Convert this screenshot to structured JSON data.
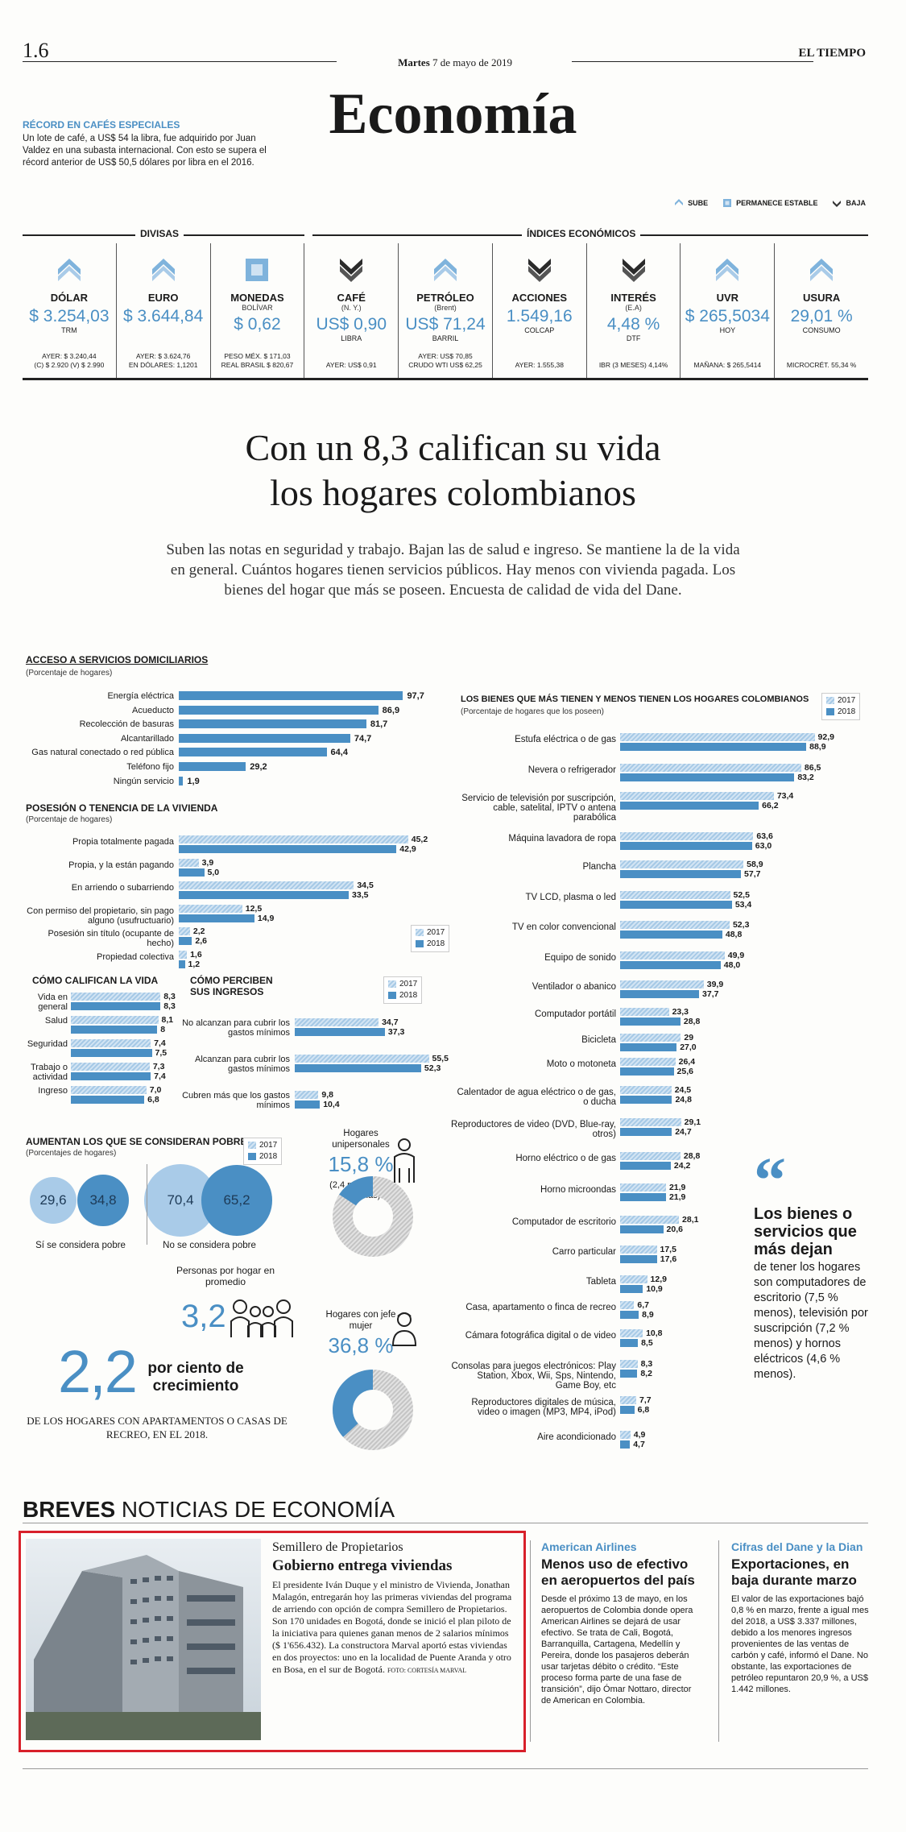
{
  "header": {
    "page_number": "1.6",
    "date_day": "Martes",
    "date_rest": "7 de mayo de 2019",
    "newspaper": "EL TIEMPO",
    "section": "Economía"
  },
  "record": {
    "title": "RÉCORD EN CAFÉS ESPECIALES",
    "text": "Un lote de café, a US$ 54 la libra, fue adquirido por Juan Valdez en una subasta internacional. Con esto se supera el récord anterior de US$ 50,5 dólares por libra en el 2016."
  },
  "legend": {
    "up": "SUBE",
    "stable": "PERMANECE ESTABLE",
    "down": "BAJA"
  },
  "indices": {
    "head_divisas": "DIVISAS",
    "head_indices": "ÍNDICES ECONÓMICOS",
    "items": [
      {
        "name": "DÓLAR",
        "sub": "",
        "value": "$ 3.254,03",
        "unit": "TRM",
        "trend": "up",
        "foot1": "AYER: $ 3.240,44",
        "foot2": "(C) $ 2.920 (V) $ 2.990"
      },
      {
        "name": "EURO",
        "sub": "",
        "value": "$ 3.644,84",
        "unit": "",
        "trend": "up",
        "foot1": "AYER: $ 3.624,76",
        "foot2": "EN DÓLARES: 1,1201"
      },
      {
        "name": "MONEDAS",
        "sub": "BOLÍVAR",
        "value": "$ 0,62",
        "unit": "",
        "trend": "stable",
        "foot1": "PESO MÉX. $ 171,03",
        "foot2": "REAL BRASIL $ 820,67"
      },
      {
        "name": "CAFÉ",
        "sub": "(N. Y.)",
        "value": "US$ 0,90",
        "unit": "LIBRA",
        "trend": "down",
        "foot1": "AYER: US$ 0,91",
        "foot2": ""
      },
      {
        "name": "PETRÓLEO",
        "sub": "(Brent)",
        "value": "US$ 71,24",
        "unit": "BARRIL",
        "trend": "up",
        "foot1": "AYER: US$ 70,85",
        "foot2": "CRUDO WTI US$ 62,25"
      },
      {
        "name": "ACCIONES",
        "sub": "",
        "value": "1.549,16",
        "unit": "COLCAP",
        "trend": "down",
        "foot1": "AYER: 1.555,38",
        "foot2": ""
      },
      {
        "name": "INTERÉS",
        "sub": "(E.A)",
        "value": "4,48 %",
        "unit": "DTF",
        "trend": "down",
        "foot1": "IBR (3 MESES) 4,14%",
        "foot2": ""
      },
      {
        "name": "UVR",
        "sub": "",
        "value": "$ 265,5034",
        "unit": "HOY",
        "trend": "up",
        "foot1": "MAÑANA: $ 265,5414",
        "foot2": ""
      },
      {
        "name": "USURA",
        "sub": "",
        "value": "29,01 %",
        "unit": "CONSUMO",
        "trend": "up",
        "foot1": "MICROCRÉT. 55,34 %",
        "foot2": ""
      }
    ]
  },
  "headline": {
    "line1": "Con un 8,3 califican su vida",
    "line2": "los hogares colombianos",
    "deck": "Suben las notas en seguridad y trabajo. Bajan las de salud e ingreso. Se mantiene la de la vida en general. Cuántos hogares tienen servicios públicos. Hay menos con vivienda pagada. Los bienes del hogar que más se poseen. Encuesta de calidad de vida del Dane."
  },
  "chart_data": [
    {
      "type": "bar",
      "title": "ACCESO A SERVICIOS DOMICILIARIOS",
      "subtitle": "(Porcentaje de hogares)",
      "categories": [
        "Energía eléctrica",
        "Acueducto",
        "Recolección de basuras",
        "Alcantarillado",
        "Gas natural conectado o red pública",
        "Teléfono fijo",
        "Ningún servicio"
      ],
      "values": [
        97.7,
        86.9,
        81.7,
        74.7,
        64.4,
        29.2,
        1.9
      ],
      "labels": [
        "97,7",
        "86,9",
        "81,7",
        "74,7",
        "64,4",
        "29,2",
        "1,9"
      ]
    },
    {
      "type": "bar",
      "title": "POSESIÓN O TENENCIA DE LA VIVIENDA",
      "subtitle": "(Porcentaje de hogares)",
      "categories": [
        "Propia totalmente pagada",
        "Propia, y la están pagando",
        "En arriendo o subarriendo",
        "Con permiso del propietario, sin pago alguno (usufructuario)",
        "Posesión sin título (ocupante de hecho)",
        "Propiedad colectiva"
      ],
      "series": [
        {
          "name": "2017",
          "values": [
            45.2,
            3.9,
            34.5,
            12.5,
            2.2,
            1.6
          ],
          "labels": [
            "45,2",
            "3,9",
            "34,5",
            "12,5",
            "2,2",
            "1,6"
          ]
        },
        {
          "name": "2018",
          "values": [
            42.9,
            5.0,
            33.5,
            14.9,
            2.6,
            1.2
          ],
          "labels": [
            "42,9",
            "5,0",
            "33,5",
            "14,9",
            "2,6",
            "1,2"
          ]
        }
      ]
    },
    {
      "type": "bar",
      "title": "CÓMO CALIFICAN LA VIDA",
      "categories": [
        "Vida en general",
        "Salud",
        "Seguridad",
        "Trabajo o actividad",
        "Ingreso"
      ],
      "series": [
        {
          "name": "2017",
          "values": [
            8.3,
            8.1,
            7.4,
            7.3,
            7.0
          ],
          "labels": [
            "8,3",
            "8,1",
            "7,4",
            "7,3",
            "7,0"
          ]
        },
        {
          "name": "2018",
          "values": [
            8.3,
            8.0,
            7.5,
            7.4,
            6.8
          ],
          "labels": [
            "8,3",
            "8",
            "7,5",
            "7,4",
            "6,8"
          ]
        }
      ]
    },
    {
      "type": "bar",
      "title": "CÓMO PERCIBEN SUS INGRESOS",
      "categories": [
        "No alcanzan para cubrir los gastos mínimos",
        "Alcanzan para cubrir los gastos mínimos",
        "Cubren más que los gastos mínimos"
      ],
      "series": [
        {
          "name": "2017",
          "values": [
            34.7,
            55.5,
            9.8
          ],
          "labels": [
            "34,7",
            "55,5",
            "9,8"
          ]
        },
        {
          "name": "2018",
          "values": [
            37.3,
            52.3,
            10.4
          ],
          "labels": [
            "37,3",
            "52,3",
            "10,4"
          ]
        }
      ]
    },
    {
      "type": "bar",
      "title": "LOS BIENES QUE MÁS TIENEN Y MENOS TIENEN LOS HOGARES COLOMBIANOS",
      "subtitle": "(Porcentaje de hogares que los poseen)",
      "categories": [
        "Estufa eléctrica o de gas",
        "Nevera o refrigerador",
        "Servicio de televisión por suscripción, cable, satelital, IPTV o antena parabólica",
        "Máquina lavadora de ropa",
        "Plancha",
        "TV LCD, plasma o led",
        "TV en color convencional",
        "Equipo de sonido",
        "Ventilador o abanico",
        "Computador portátil",
        "Bicicleta",
        "Moto o motoneta",
        "Calentador de agua eléctrico o de gas, o ducha",
        "Reproductores de video (DVD, Blue-ray, otros)",
        "Horno eléctrico o de gas",
        "Horno microondas",
        "Computador de escritorio",
        "Carro particular",
        "Tableta",
        "Casa, apartamento o finca de recreo",
        "Cámara fotográfica digital o de video",
        "Consolas para juegos electrónicos: Play Station, Xbox, Wii, Sps, Nintendo, Game Boy, etc",
        "Reproductores digitales de música, video o imagen (MP3, MP4, iPod)",
        "Aire acondicionado"
      ],
      "series": [
        {
          "name": "2017",
          "values": [
            92.9,
            86.5,
            73.4,
            63.6,
            58.9,
            52.5,
            52.3,
            49.9,
            39.9,
            23.3,
            29,
            26.4,
            24.5,
            29.1,
            28.8,
            21.9,
            28.1,
            17.5,
            12.9,
            6.7,
            10.8,
            8.3,
            7.7,
            4.9
          ],
          "labels": [
            "92,9",
            "86,5",
            "73,4",
            "63,6",
            "58,9",
            "52,5",
            "52,3",
            "49,9",
            "39,9",
            "23,3",
            "29",
            "26,4",
            "24,5",
            "29,1",
            "28,8",
            "21,9",
            "28,1",
            "17,5",
            "12,9",
            "6,7",
            "10,8",
            "8,3",
            "7,7",
            "4,9"
          ]
        },
        {
          "name": "2018",
          "values": [
            88.9,
            83.2,
            66.2,
            63.0,
            57.7,
            53.4,
            48.8,
            48.0,
            37.7,
            28.8,
            27.0,
            25.6,
            24.8,
            24.7,
            24.2,
            21.9,
            20.6,
            17.6,
            10.9,
            8.9,
            8.5,
            8.2,
            6.8,
            4.7
          ],
          "labels": [
            "88,9",
            "83,2",
            "66,2",
            "63,0",
            "57,7",
            "53,4",
            "48,8",
            "48,0",
            "37,7",
            "28,8",
            "27,0",
            "25,6",
            "24,8",
            "24,7",
            "24,2",
            "21,9",
            "20,6",
            "17,6",
            "10,9",
            "8,9",
            "8,5",
            "8,2",
            "6,8",
            "4,7"
          ]
        }
      ]
    },
    {
      "type": "bar",
      "title": "AUMENTAN LOS QUE SE CONSIDERAN POBRES",
      "subtitle": "(Porcentajes de hogares)",
      "categories": [
        "Sí se considera pobre",
        "No se considera pobre"
      ],
      "series": [
        {
          "name": "2017",
          "values": [
            29.6,
            70.4
          ],
          "labels": [
            "29,6",
            "70,4"
          ]
        },
        {
          "name": "2018",
          "values": [
            34.8,
            65.2
          ],
          "labels": [
            "34,8",
            "65,2"
          ]
        }
      ]
    },
    {
      "type": "pie",
      "title": "Hogares unipersonales",
      "value": 15.8,
      "label": "15,8 %",
      "note": "(2,4 millones de personas)"
    },
    {
      "type": "pie",
      "title": "Hogares con jefe mujer",
      "value": 36.8,
      "label": "36,8 %"
    }
  ],
  "legend_years": {
    "y2017": "2017",
    "y2018": "2018"
  },
  "stats": {
    "persons_label": "Personas por hogar en promedio",
    "persons_value": "3,2",
    "growth_value": "2,2",
    "growth_label": "por ciento de crecimiento",
    "growth_note": "DE LOS HOGARES CON APARTAMENTOS O CASAS DE RECREO, EN EL 2018."
  },
  "quote": {
    "mark": "“",
    "bold": "Los bienes o servicios que más dejan",
    "text": "de tener los hogares son computadores de escritorio (7,5 % menos), televisión por suscripción (7,2 % menos) y hornos eléctricos (4,6 % menos)."
  },
  "briefs": {
    "title_bold": "BREVES",
    "title_rest": " NOTICIAS DE ECONOMÍA",
    "items": [
      {
        "kicker": "Semillero de Propietarios",
        "headline": "Gobierno entrega viviendas",
        "text": "El presidente Iván Duque y el ministro de Vivienda, Jonathan Malagón, entregarán hoy las primeras viviendas del programa de arriendo con opción de compra Semillero de Propietarios. Son 170 unidades en Bogotá, donde se inició el plan piloto de la iniciativa para quienes ganan menos de 2 salarios mínimos ($ 1'656.432). La constructora Marval aportó estas viviendas en dos proyectos: uno en la localidad de Puente Aranda y otro en Bosa, en el sur de Bogotá.",
        "credit": "FOTO: CORTESÍA MARVAL"
      },
      {
        "kicker": "American Airlines",
        "headline": "Menos uso de efectivo en aeropuertos del país",
        "text": "Desde el próximo 13 de mayo, en los aeropuertos de Colombia donde opera American Airlines se dejará de usar efectivo. Se trata de Cali, Bogotá, Barranquilla, Cartagena, Medellín y Pereira, donde los pasajeros deberán usar tarjetas débito o crédito. “Este proceso forma parte de una fase de transición”, dijo Ómar Nottaro, director de American en Colombia."
      },
      {
        "kicker": "Cifras del Dane y la Dian",
        "headline": "Exportaciones, en baja durante marzo",
        "text": "El valor de las exportaciones bajó 0,8 % en marzo, frente a igual mes del 2018, a US$ 3.337 millones, debido a los menores ingresos provenientes de las ventas de carbón y café, informó el Dane. No obstante, las exportaciones de petróleo repuntaron 20,9 %, a US$ 1.442 millones."
      }
    ]
  }
}
